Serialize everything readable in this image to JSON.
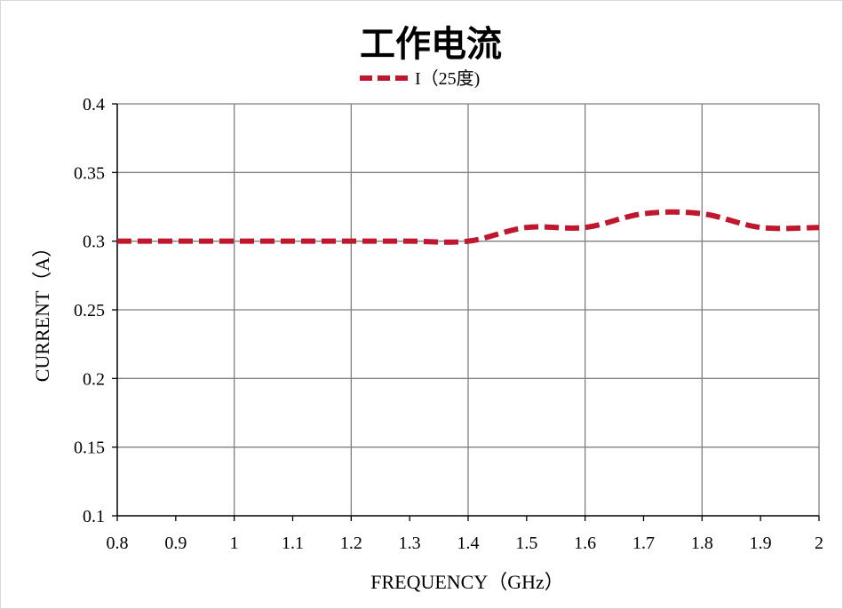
{
  "chart_data": {
    "type": "line",
    "title": "工作电流",
    "xlabel": "FREQUENCY（GHz）",
    "ylabel": "CURRENT（A）",
    "xlim": [
      0.8,
      2.0
    ],
    "ylim": [
      0.1,
      0.4
    ],
    "x_ticks": [
      "0.8",
      "0.9",
      "1",
      "1.1",
      "1.2",
      "1.3",
      "1.4",
      "1.5",
      "1.6",
      "1.7",
      "1.8",
      "1.9",
      "2"
    ],
    "y_ticks": [
      "0.1",
      "0.15",
      "0.2",
      "0.25",
      "0.3",
      "0.35",
      "0.4"
    ],
    "grid": true,
    "legend_position": "top-center",
    "series": [
      {
        "name": "I（25度)",
        "color": "#c0172f",
        "line_style": "dashed",
        "x": [
          0.8,
          0.9,
          1.0,
          1.1,
          1.2,
          1.3,
          1.4,
          1.5,
          1.6,
          1.7,
          1.8,
          1.9,
          2.0
        ],
        "y": [
          0.3,
          0.3,
          0.3,
          0.3,
          0.3,
          0.3,
          0.3,
          0.31,
          0.31,
          0.32,
          0.32,
          0.31,
          0.31
        ]
      }
    ]
  }
}
